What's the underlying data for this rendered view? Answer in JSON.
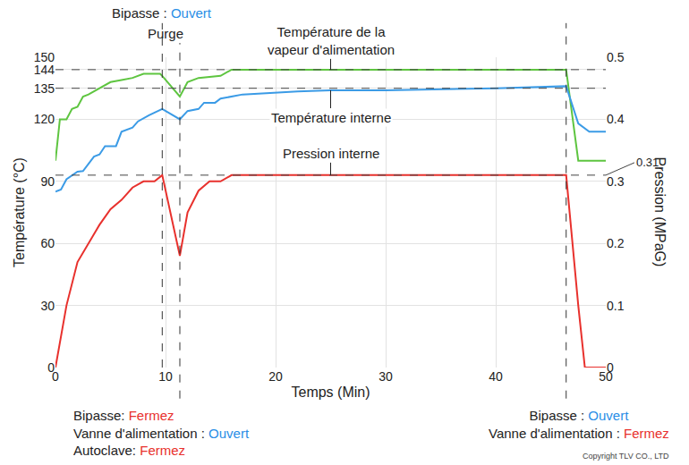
{
  "chart_data": {
    "type": "line",
    "x_label": "Temps (Min)",
    "y_label": "Température (°C)",
    "y2_label": "Pression (MPaG)",
    "xlim": [
      0,
      50
    ],
    "xticks": [
      0,
      10,
      20,
      30,
      40,
      50
    ],
    "ylim": [
      0,
      150
    ],
    "yticks": [
      0,
      30,
      60,
      90,
      120,
      135,
      144,
      150
    ],
    "y2lim": [
      0,
      0.5
    ],
    "y2ticks": [
      0,
      0.1,
      0.2,
      0.3,
      0.4,
      0.5
    ],
    "grid": true,
    "hlines": [
      144,
      135
    ],
    "y2lines": [
      0.31
    ],
    "vlines": [
      9.7,
      11.3,
      46.4
    ],
    "series": [
      {
        "name": "Température de la vapeur d'alimentation",
        "color": "#5ec540",
        "x": [
          0,
          0.4,
          1,
          1.5,
          2,
          2.5,
          3,
          4,
          5,
          6,
          7,
          8,
          9.5,
          9.7,
          11.3,
          12,
          13,
          15,
          16,
          25,
          46.4,
          47.5,
          50
        ],
        "values": [
          100,
          120,
          120,
          125,
          126,
          131,
          132,
          135,
          138,
          139,
          140,
          142,
          142,
          141,
          131,
          138,
          140,
          141,
          144,
          144,
          144,
          100,
          100
        ]
      },
      {
        "name": "Température interne",
        "color": "#3b9be6",
        "x": [
          0,
          0.5,
          1,
          2,
          2.5,
          3.5,
          4,
          4.5,
          5.5,
          6,
          7,
          7.5,
          8.5,
          9.7,
          11.3,
          12,
          13,
          13.5,
          14.5,
          15,
          17,
          22,
          25,
          30,
          40,
          46.4,
          47.5,
          48.5,
          50
        ],
        "values": [
          85,
          86,
          91,
          94.7,
          95,
          102,
          103,
          107,
          107,
          114,
          116,
          119,
          122,
          125,
          120,
          124,
          125,
          128,
          128,
          130,
          132,
          133.5,
          134,
          134,
          135,
          136,
          118,
          114,
          114
        ]
      },
      {
        "name": "Pression interne",
        "color": "#e8312d",
        "axis": "y2",
        "x": [
          0,
          1,
          2,
          3,
          4,
          5,
          6,
          7,
          8,
          9,
          9.7,
          11.3,
          12,
          13,
          14,
          15,
          16,
          25,
          46.4,
          47.5,
          48.1,
          50
        ],
        "values": [
          0,
          0.1,
          0.17,
          0.2,
          0.23,
          0.255,
          0.27,
          0.29,
          0.3,
          0.3,
          0.31,
          0.18,
          0.25,
          0.285,
          0.3,
          0.3,
          0.31,
          0.31,
          0.31,
          0.1,
          0,
          0
        ]
      }
    ],
    "top_notes": [
      {
        "x": 9.7,
        "lines": [
          [
            {
              "text": "Bipasse : "
            },
            {
              "text": "Ouvert",
              "color": "#2a8ee6"
            }
          ]
        ]
      },
      {
        "x": 11.3,
        "lines": [
          [
            {
              "text": "Purge"
            }
          ]
        ]
      }
    ],
    "bottom_notes": [
      {
        "x": 11.3,
        "lines": [
          [
            {
              "text": "Bipasse: "
            },
            {
              "text": "Fermez",
              "color": "#e8312d"
            }
          ],
          [
            {
              "text": "Vanne d'alimentation : "
            },
            {
              "text": "Ouvert",
              "color": "#2a8ee6"
            }
          ],
          [
            {
              "text": "Autoclave: "
            },
            {
              "text": "Fermez",
              "color": "#e8312d"
            }
          ]
        ]
      },
      {
        "x": 46.4,
        "lines": [
          [
            {
              "text": "Bipasse : "
            },
            {
              "text": "Ouvert",
              "color": "#2a8ee6"
            }
          ],
          [
            {
              "text": "Vanne d'alimentation : "
            },
            {
              "text": "Fermez",
              "color": "#e8312d"
            }
          ]
        ]
      }
    ],
    "copyright": "Copyright TLV CO., LTD"
  }
}
